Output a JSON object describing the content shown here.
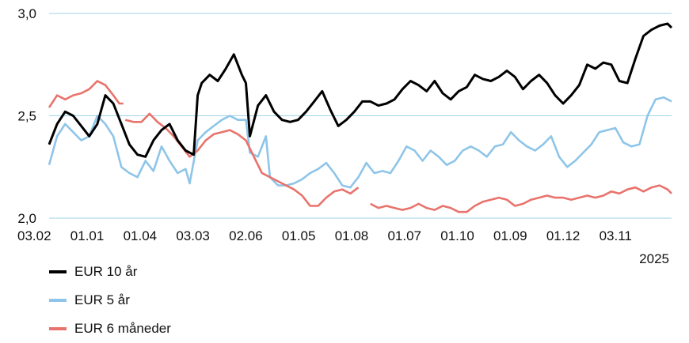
{
  "chart_data": {
    "type": "line",
    "title": "",
    "xlabel": "",
    "ylabel": "",
    "ylim": [
      2.0,
      3.0
    ],
    "grid": true,
    "legend_position": "bottom-left",
    "yticks": [
      "2,0",
      "2,5",
      "3,0"
    ],
    "xticks": [
      "03.02",
      "01.01",
      "01.04",
      "03.03",
      "02.06",
      "01.05",
      "01.08",
      "01.07",
      "01.10",
      "01.09",
      "01.12",
      "03.11"
    ],
    "year_label": "2025",
    "series": [
      {
        "name": "EUR 10 år",
        "color": "#000000",
        "points": [
          [
            0.0,
            2.36
          ],
          [
            0.4,
            2.46
          ],
          [
            0.8,
            2.52
          ],
          [
            1.2,
            2.5
          ],
          [
            1.6,
            2.45
          ],
          [
            2.0,
            2.4
          ],
          [
            2.4,
            2.46
          ],
          [
            2.8,
            2.6
          ],
          [
            3.2,
            2.56
          ],
          [
            3.6,
            2.46
          ],
          [
            4.0,
            2.36
          ],
          [
            4.4,
            2.31
          ],
          [
            4.8,
            2.3
          ],
          [
            5.2,
            2.38
          ],
          [
            5.6,
            2.43
          ],
          [
            6.0,
            2.46
          ],
          [
            6.4,
            2.38
          ],
          [
            6.8,
            2.33
          ],
          [
            7.2,
            2.31
          ],
          [
            7.4,
            2.6
          ],
          [
            7.6,
            2.66
          ],
          [
            8.0,
            2.7
          ],
          [
            8.4,
            2.67
          ],
          [
            8.8,
            2.73
          ],
          [
            9.2,
            2.8
          ],
          [
            9.6,
            2.7
          ],
          [
            9.8,
            2.66
          ],
          [
            10.0,
            2.4
          ],
          [
            10.4,
            2.55
          ],
          [
            10.8,
            2.6
          ],
          [
            11.2,
            2.52
          ],
          [
            11.6,
            2.48
          ],
          [
            12.0,
            2.47
          ],
          [
            12.4,
            2.48
          ],
          [
            12.8,
            2.52
          ],
          [
            13.2,
            2.57
          ],
          [
            13.6,
            2.62
          ],
          [
            14.0,
            2.53
          ],
          [
            14.4,
            2.45
          ],
          [
            14.8,
            2.48
          ],
          [
            15.2,
            2.52
          ],
          [
            15.6,
            2.57
          ],
          [
            16.0,
            2.57
          ],
          [
            16.4,
            2.55
          ],
          [
            16.8,
            2.56
          ],
          [
            17.2,
            2.58
          ],
          [
            17.6,
            2.63
          ],
          [
            18.0,
            2.67
          ],
          [
            18.4,
            2.65
          ],
          [
            18.8,
            2.62
          ],
          [
            19.2,
            2.67
          ],
          [
            19.6,
            2.61
          ],
          [
            20.0,
            2.58
          ],
          [
            20.4,
            2.62
          ],
          [
            20.8,
            2.64
          ],
          [
            21.2,
            2.7
          ],
          [
            21.6,
            2.68
          ],
          [
            22.0,
            2.67
          ],
          [
            22.4,
            2.69
          ],
          [
            22.8,
            2.72
          ],
          [
            23.2,
            2.69
          ],
          [
            23.6,
            2.63
          ],
          [
            24.0,
            2.67
          ],
          [
            24.4,
            2.7
          ],
          [
            24.8,
            2.66
          ],
          [
            25.2,
            2.6
          ],
          [
            25.6,
            2.56
          ],
          [
            26.0,
            2.6
          ],
          [
            26.4,
            2.65
          ],
          [
            26.8,
            2.75
          ],
          [
            27.2,
            2.73
          ],
          [
            27.6,
            2.76
          ],
          [
            28.0,
            2.75
          ],
          [
            28.4,
            2.67
          ],
          [
            28.8,
            2.66
          ],
          [
            29.2,
            2.78
          ],
          [
            29.6,
            2.89
          ],
          [
            30.0,
            2.92
          ],
          [
            30.4,
            2.94
          ],
          [
            30.8,
            2.95
          ],
          [
            31.0,
            2.93
          ]
        ]
      },
      {
        "name": "EUR 5 år",
        "color": "#8ec5e8",
        "points": [
          [
            0.0,
            2.26
          ],
          [
            0.4,
            2.4
          ],
          [
            0.8,
            2.46
          ],
          [
            1.2,
            2.42
          ],
          [
            1.6,
            2.38
          ],
          [
            2.0,
            2.4
          ],
          [
            2.4,
            2.5
          ],
          [
            2.8,
            2.46
          ],
          [
            3.2,
            2.4
          ],
          [
            3.6,
            2.25
          ],
          [
            4.0,
            2.22
          ],
          [
            4.4,
            2.2
          ],
          [
            4.8,
            2.28
          ],
          [
            5.2,
            2.23
          ],
          [
            5.6,
            2.35
          ],
          [
            6.0,
            2.28
          ],
          [
            6.4,
            2.22
          ],
          [
            6.8,
            2.24
          ],
          [
            7.0,
            2.17
          ],
          [
            7.4,
            2.38
          ],
          [
            7.8,
            2.42
          ],
          [
            8.2,
            2.45
          ],
          [
            8.6,
            2.48
          ],
          [
            9.0,
            2.5
          ],
          [
            9.4,
            2.48
          ],
          [
            9.8,
            2.48
          ],
          [
            10.0,
            2.32
          ],
          [
            10.4,
            2.3
          ],
          [
            10.8,
            2.4
          ],
          [
            11.0,
            2.2
          ],
          [
            11.4,
            2.16
          ],
          [
            11.8,
            2.16
          ],
          [
            12.2,
            2.17
          ],
          [
            12.6,
            2.19
          ],
          [
            13.0,
            2.22
          ],
          [
            13.4,
            2.24
          ],
          [
            13.8,
            2.27
          ],
          [
            14.2,
            2.22
          ],
          [
            14.6,
            2.16
          ],
          [
            15.0,
            2.15
          ],
          [
            15.4,
            2.2
          ],
          [
            15.8,
            2.27
          ],
          [
            16.2,
            2.22
          ],
          [
            16.6,
            2.23
          ],
          [
            17.0,
            2.22
          ],
          [
            17.4,
            2.28
          ],
          [
            17.8,
            2.35
          ],
          [
            18.2,
            2.33
          ],
          [
            18.6,
            2.28
          ],
          [
            19.0,
            2.33
          ],
          [
            19.4,
            2.3
          ],
          [
            19.8,
            2.26
          ],
          [
            20.2,
            2.28
          ],
          [
            20.6,
            2.33
          ],
          [
            21.0,
            2.35
          ],
          [
            21.4,
            2.33
          ],
          [
            21.8,
            2.3
          ],
          [
            22.2,
            2.35
          ],
          [
            22.6,
            2.36
          ],
          [
            23.0,
            2.42
          ],
          [
            23.4,
            2.38
          ],
          [
            23.8,
            2.35
          ],
          [
            24.2,
            2.33
          ],
          [
            24.6,
            2.36
          ],
          [
            25.0,
            2.4
          ],
          [
            25.4,
            2.3
          ],
          [
            25.8,
            2.25
          ],
          [
            26.2,
            2.28
          ],
          [
            26.6,
            2.32
          ],
          [
            27.0,
            2.36
          ],
          [
            27.4,
            2.42
          ],
          [
            27.8,
            2.43
          ],
          [
            28.2,
            2.44
          ],
          [
            28.6,
            2.37
          ],
          [
            29.0,
            2.35
          ],
          [
            29.4,
            2.36
          ],
          [
            29.8,
            2.5
          ],
          [
            30.2,
            2.58
          ],
          [
            30.6,
            2.59
          ],
          [
            31.0,
            2.57
          ]
        ]
      },
      {
        "name": "EUR 6 måneder",
        "color": "#e8736c",
        "segments": [
          [
            [
              0.0,
              2.54
            ],
            [
              0.4,
              2.6
            ],
            [
              0.8,
              2.58
            ],
            [
              1.2,
              2.6
            ],
            [
              1.6,
              2.61
            ],
            [
              2.0,
              2.63
            ],
            [
              2.4,
              2.67
            ],
            [
              2.8,
              2.65
            ],
            [
              3.2,
              2.6
            ],
            [
              3.5,
              2.56
            ],
            [
              3.7,
              2.56
            ]
          ],
          [
            [
              3.8,
              2.48
            ],
            [
              4.2,
              2.47
            ],
            [
              4.6,
              2.47
            ],
            [
              5.0,
              2.51
            ],
            [
              5.4,
              2.47
            ],
            [
              5.8,
              2.44
            ],
            [
              6.2,
              2.4
            ],
            [
              6.6,
              2.35
            ],
            [
              7.0,
              2.3
            ],
            [
              7.4,
              2.33
            ],
            [
              7.8,
              2.38
            ],
            [
              8.2,
              2.41
            ],
            [
              8.6,
              2.42
            ],
            [
              9.0,
              2.43
            ],
            [
              9.4,
              2.41
            ],
            [
              9.8,
              2.38
            ],
            [
              10.2,
              2.3
            ],
            [
              10.6,
              2.22
            ],
            [
              11.0,
              2.2
            ],
            [
              11.4,
              2.18
            ],
            [
              11.8,
              2.16
            ],
            [
              12.2,
              2.14
            ],
            [
              12.6,
              2.11
            ],
            [
              13.0,
              2.06
            ],
            [
              13.4,
              2.06
            ],
            [
              13.8,
              2.1
            ],
            [
              14.2,
              2.13
            ],
            [
              14.6,
              2.14
            ],
            [
              15.0,
              2.12
            ],
            [
              15.4,
              2.15
            ]
          ],
          [
            [
              16.0,
              2.07
            ],
            [
              16.4,
              2.05
            ],
            [
              16.8,
              2.06
            ],
            [
              17.2,
              2.05
            ],
            [
              17.6,
              2.04
            ],
            [
              18.0,
              2.05
            ],
            [
              18.4,
              2.07
            ],
            [
              18.8,
              2.05
            ],
            [
              19.2,
              2.04
            ],
            [
              19.6,
              2.06
            ],
            [
              20.0,
              2.05
            ],
            [
              20.4,
              2.03
            ],
            [
              20.8,
              2.03
            ],
            [
              21.2,
              2.06
            ],
            [
              21.6,
              2.08
            ],
            [
              22.0,
              2.09
            ],
            [
              22.4,
              2.1
            ],
            [
              22.8,
              2.09
            ],
            [
              23.2,
              2.06
            ],
            [
              23.6,
              2.07
            ],
            [
              24.0,
              2.09
            ],
            [
              24.4,
              2.1
            ],
            [
              24.8,
              2.11
            ],
            [
              25.2,
              2.1
            ],
            [
              25.6,
              2.1
            ],
            [
              26.0,
              2.09
            ],
            [
              26.4,
              2.1
            ],
            [
              26.8,
              2.11
            ],
            [
              27.2,
              2.1
            ],
            [
              27.6,
              2.11
            ],
            [
              28.0,
              2.13
            ],
            [
              28.4,
              2.12
            ],
            [
              28.8,
              2.14
            ],
            [
              29.2,
              2.15
            ],
            [
              29.6,
              2.13
            ],
            [
              30.0,
              2.15
            ],
            [
              30.4,
              2.16
            ],
            [
              30.8,
              2.14
            ],
            [
              31.0,
              2.12
            ]
          ]
        ]
      }
    ]
  }
}
